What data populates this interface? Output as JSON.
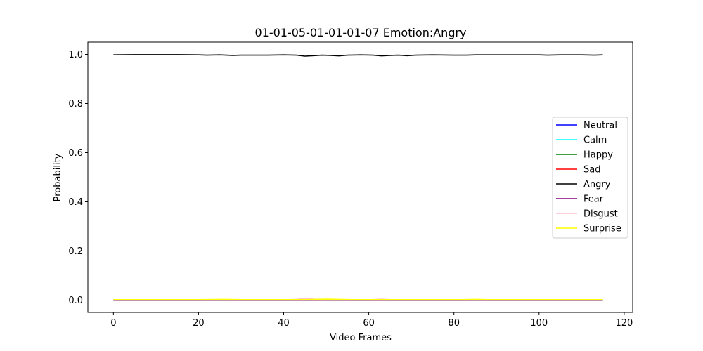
{
  "chart_data": {
    "type": "line",
    "title": "01-01-05-01-01-01-07 Emotion:Angry",
    "xlabel": "Video Frames",
    "ylabel": "Probability",
    "xlim": [
      -6,
      122
    ],
    "ylim": [
      -0.05,
      1.05
    ],
    "x_ticks": [
      0,
      20,
      40,
      60,
      80,
      100,
      120
    ],
    "x_tick_labels": [
      "0",
      "20",
      "40",
      "60",
      "80",
      "100",
      "120"
    ],
    "y_ticks": [
      0.0,
      0.2,
      0.4,
      0.6,
      0.8,
      1.0
    ],
    "y_tick_labels": [
      "0.0",
      "0.2",
      "0.4",
      "0.6",
      "0.8",
      "1.0"
    ],
    "grid": false,
    "legend_position": "center-right",
    "x_range": [
      0,
      115
    ],
    "series": [
      {
        "name": "Neutral",
        "color": "#0000ff",
        "points": [
          [
            0,
            0.0
          ],
          [
            115,
            0.0
          ]
        ]
      },
      {
        "name": "Calm",
        "color": "#00ffff",
        "points": [
          [
            0,
            0.0
          ],
          [
            115,
            0.0
          ]
        ]
      },
      {
        "name": "Happy",
        "color": "#008000",
        "points": [
          [
            0,
            0.0
          ],
          [
            115,
            0.0
          ]
        ]
      },
      {
        "name": "Sad",
        "color": "#ff0000",
        "points": [
          [
            0,
            0.0
          ],
          [
            115,
            0.0
          ]
        ]
      },
      {
        "name": "Angry",
        "color": "#000000",
        "points": [
          [
            0,
            0.998
          ],
          [
            5,
            0.999
          ],
          [
            10,
            0.999
          ],
          [
            15,
            0.999
          ],
          [
            20,
            0.998
          ],
          [
            22,
            0.997
          ],
          [
            25,
            0.998
          ],
          [
            28,
            0.996
          ],
          [
            30,
            0.997
          ],
          [
            33,
            0.997
          ],
          [
            36,
            0.997
          ],
          [
            40,
            0.998
          ],
          [
            43,
            0.997
          ],
          [
            45,
            0.993
          ],
          [
            47,
            0.995
          ],
          [
            49,
            0.997
          ],
          [
            51,
            0.996
          ],
          [
            53,
            0.994
          ],
          [
            55,
            0.997
          ],
          [
            58,
            0.998
          ],
          [
            61,
            0.997
          ],
          [
            63,
            0.994
          ],
          [
            65,
            0.996
          ],
          [
            67,
            0.997
          ],
          [
            69,
            0.995
          ],
          [
            71,
            0.997
          ],
          [
            75,
            0.998
          ],
          [
            80,
            0.997
          ],
          [
            83,
            0.997
          ],
          [
            85,
            0.998
          ],
          [
            90,
            0.998
          ],
          [
            95,
            0.998
          ],
          [
            100,
            0.998
          ],
          [
            102,
            0.997
          ],
          [
            105,
            0.998
          ],
          [
            110,
            0.998
          ],
          [
            113,
            0.997
          ],
          [
            115,
            0.998
          ]
        ]
      },
      {
        "name": "Fear",
        "color": "#800080",
        "points": [
          [
            0,
            0.0
          ],
          [
            115,
            0.0
          ]
        ]
      },
      {
        "name": "Disgust",
        "color": "#ffc0cb",
        "points": [
          [
            0,
            0.001
          ],
          [
            40,
            0.001
          ],
          [
            43,
            0.003
          ],
          [
            45,
            0.007
          ],
          [
            47,
            0.004
          ],
          [
            49,
            0.001
          ],
          [
            60,
            0.001
          ],
          [
            63,
            0.004
          ],
          [
            65,
            0.002
          ],
          [
            67,
            0.001
          ],
          [
            115,
            0.001
          ]
        ]
      },
      {
        "name": "Surprise",
        "color": "#ffff00",
        "points": [
          [
            0,
            0.002
          ],
          [
            20,
            0.002
          ],
          [
            26,
            0.003
          ],
          [
            30,
            0.002
          ],
          [
            45,
            0.002
          ],
          [
            50,
            0.004
          ],
          [
            53,
            0.003
          ],
          [
            56,
            0.002
          ],
          [
            82,
            0.002
          ],
          [
            85,
            0.003
          ],
          [
            88,
            0.002
          ],
          [
            115,
            0.002
          ]
        ]
      }
    ]
  }
}
